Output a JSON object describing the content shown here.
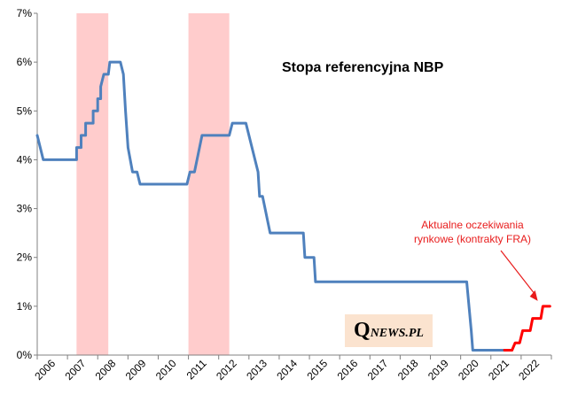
{
  "chart_data": {
    "type": "line",
    "title": "Stopa referencyjna NBP",
    "xlabel": "",
    "ylabel": "",
    "xlim": [
      2006,
      2023
    ],
    "ylim": [
      0,
      7
    ],
    "x_ticks": [
      "2006",
      "2007",
      "2008",
      "2009",
      "2010",
      "2011",
      "2012",
      "2013",
      "2014",
      "2015",
      "2016",
      "2017",
      "2018",
      "2019",
      "2020",
      "2021",
      "2022"
    ],
    "y_ticks": [
      "0%",
      "1%",
      "2%",
      "3%",
      "4%",
      "5%",
      "6%",
      "7%"
    ],
    "recession_bands": [
      [
        2007.3,
        2008.35
      ],
      [
        2011.0,
        2012.35
      ]
    ],
    "series": [
      {
        "color": "#4f81bd",
        "points": [
          [
            2006.0,
            4.5
          ],
          [
            2006.2,
            4.0
          ],
          [
            2007.3,
            4.0
          ],
          [
            2007.3,
            4.25
          ],
          [
            2007.45,
            4.25
          ],
          [
            2007.45,
            4.5
          ],
          [
            2007.6,
            4.5
          ],
          [
            2007.6,
            4.75
          ],
          [
            2007.85,
            4.75
          ],
          [
            2007.85,
            5.0
          ],
          [
            2008.0,
            5.0
          ],
          [
            2008.0,
            5.25
          ],
          [
            2008.1,
            5.25
          ],
          [
            2008.1,
            5.5
          ],
          [
            2008.2,
            5.75
          ],
          [
            2008.35,
            5.75
          ],
          [
            2008.4,
            6.0
          ],
          [
            2008.75,
            6.0
          ],
          [
            2008.85,
            5.75
          ],
          [
            2008.92,
            5.0
          ],
          [
            2009.0,
            4.25
          ],
          [
            2009.15,
            3.75
          ],
          [
            2009.3,
            3.75
          ],
          [
            2009.4,
            3.5
          ],
          [
            2010.95,
            3.5
          ],
          [
            2011.05,
            3.75
          ],
          [
            2011.2,
            3.75
          ],
          [
            2011.45,
            4.5
          ],
          [
            2012.35,
            4.5
          ],
          [
            2012.45,
            4.75
          ],
          [
            2012.9,
            4.75
          ],
          [
            2013.3,
            3.75
          ],
          [
            2013.35,
            3.25
          ],
          [
            2013.45,
            3.25
          ],
          [
            2013.7,
            2.5
          ],
          [
            2014.8,
            2.5
          ],
          [
            2014.85,
            2.0
          ],
          [
            2015.15,
            2.0
          ],
          [
            2015.2,
            1.5
          ],
          [
            2020.2,
            1.5
          ],
          [
            2020.35,
            0.5
          ],
          [
            2020.4,
            0.1
          ],
          [
            2021.45,
            0.1
          ]
        ]
      },
      {
        "color": "#ff0000",
        "points": [
          [
            2021.45,
            0.1
          ],
          [
            2021.7,
            0.1
          ],
          [
            2021.8,
            0.25
          ],
          [
            2021.95,
            0.25
          ],
          [
            2022.05,
            0.5
          ],
          [
            2022.3,
            0.5
          ],
          [
            2022.38,
            0.75
          ],
          [
            2022.65,
            0.75
          ],
          [
            2022.72,
            1.0
          ],
          [
            2022.95,
            1.0
          ]
        ]
      }
    ],
    "annotation": {
      "lines": [
        "Aktualne oczekiwania",
        "rynkowe (kontrakty FRA)"
      ],
      "arrow_to": [
        2022.55,
        1.0
      ]
    },
    "logo": {
      "q": "Q",
      "rest": "NEWS.PL"
    }
  }
}
